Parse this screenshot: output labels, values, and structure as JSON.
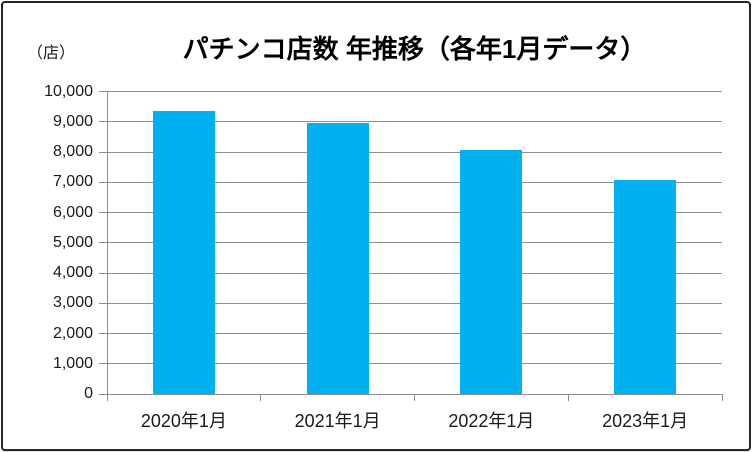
{
  "colors": {
    "bar": "#00b0f0",
    "grid": "#8f8f8f",
    "axis": "#8f8f8f",
    "text": "#1a1a1a",
    "border": "#262626",
    "background": "#ffffff"
  },
  "chart_data": {
    "type": "bar",
    "title": "パチンコ店数 年推移（各年1月データ）",
    "unit_label": "（店）",
    "categories": [
      "2020年1月",
      "2021年1月",
      "2022年1月",
      "2023年1月"
    ],
    "values": [
      9369,
      8972,
      8058,
      7083
    ],
    "xlabel": "",
    "ylabel": "店",
    "ylim": [
      0,
      10000
    ],
    "ytick_step": 1000,
    "ytick_labels": [
      "0",
      "1,000",
      "2,000",
      "3,000",
      "4,000",
      "5,000",
      "6,000",
      "7,000",
      "8,000",
      "9,000",
      "10,000"
    ],
    "grid": true,
    "legend": false
  }
}
